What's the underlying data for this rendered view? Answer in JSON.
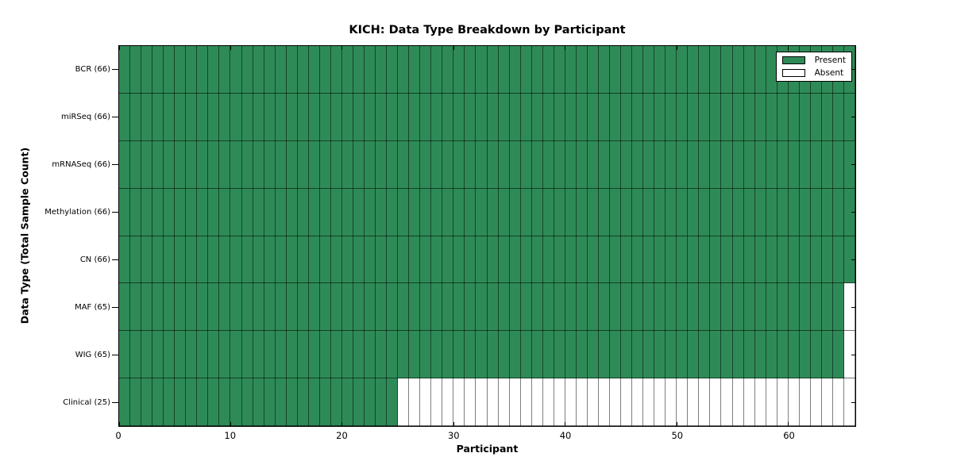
{
  "chart_data": {
    "type": "heatmap",
    "title": "KICH: Data Type Breakdown by Participant",
    "xlabel": "Participant",
    "ylabel": "Data Type (Total Sample Count)",
    "xlim": [
      0,
      66
    ],
    "n_participants": 66,
    "x_ticks": [
      0,
      10,
      20,
      30,
      40,
      50,
      60
    ],
    "n_rows": 8,
    "rows": [
      {
        "data_type": "BCR",
        "label": "BCR (66)",
        "total": 66,
        "present_count": 66
      },
      {
        "data_type": "miRSeq",
        "label": "miRSeq (66)",
        "total": 66,
        "present_count": 66
      },
      {
        "data_type": "mRNASeq",
        "label": "mRNASeq (66)",
        "total": 66,
        "present_count": 66
      },
      {
        "data_type": "Methylation",
        "label": "Methylation (66)",
        "total": 66,
        "present_count": 66
      },
      {
        "data_type": "CN",
        "label": "CN (66)",
        "total": 66,
        "present_count": 66
      },
      {
        "data_type": "MAF",
        "label": "MAF (65)",
        "total": 65,
        "present_count": 65
      },
      {
        "data_type": "WIG",
        "label": "WIG (65)",
        "total": 65,
        "present_count": 65
      },
      {
        "data_type": "Clinical",
        "label": "Clinical (25)",
        "total": 25,
        "present_count": 25
      }
    ],
    "legend": [
      {
        "label": "Present",
        "color": "#2e8b57"
      },
      {
        "label": "Absent",
        "color": "#ffffff"
      }
    ],
    "legend_position": "upper right",
    "colors": {
      "present": "#2e8b57",
      "absent": "#ffffff",
      "cell_edge": "#000000",
      "spine": "#000000",
      "background": "#ffffff"
    }
  }
}
